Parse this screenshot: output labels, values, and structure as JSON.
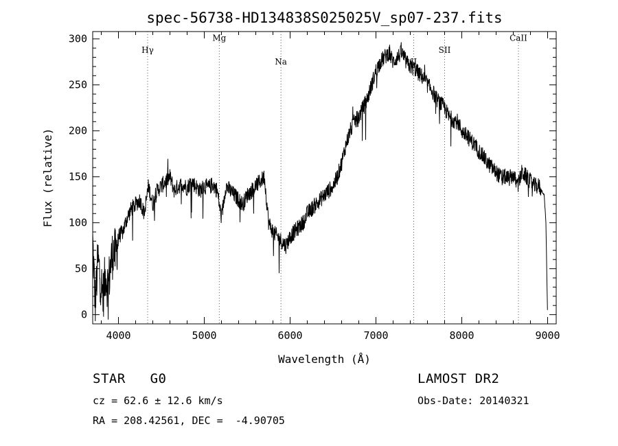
{
  "chart_data": {
    "type": "line",
    "title": "spec-56738-HD134838S025025V_sp07-237.fits",
    "xlabel": "Wavelength (Å)",
    "ylabel": "Flux (relative)",
    "xlim": [
      3700,
      9100
    ],
    "ylim": [
      -10,
      308
    ],
    "xticks": [
      4000,
      5000,
      6000,
      7000,
      8000,
      9000
    ],
    "yticks": [
      0,
      50,
      100,
      150,
      200,
      250,
      300
    ],
    "grid": false,
    "series": [
      {
        "x": [
          3700,
          3730,
          3760,
          3790,
          3820,
          3850,
          3880,
          3910,
          3940,
          3970,
          4000,
          4050,
          4100,
          4150,
          4200,
          4250,
          4300,
          4350,
          4400,
          4450,
          4500,
          4550,
          4600,
          4650,
          4700,
          4750,
          4800,
          4850,
          4900,
          4950,
          5000,
          5050,
          5100,
          5150,
          5200,
          5250,
          5300,
          5350,
          5400,
          5450,
          5500,
          5550,
          5600,
          5650,
          5700,
          5750,
          5800,
          5850,
          5900,
          5950,
          6000,
          6050,
          6100,
          6150,
          6200,
          6250,
          6300,
          6350,
          6400,
          6450,
          6500,
          6550,
          6600,
          6650,
          6700,
          6750,
          6800,
          6850,
          6900,
          6950,
          7000,
          7050,
          7100,
          7150,
          7200,
          7250,
          7300,
          7350,
          7400,
          7450,
          7500,
          7550,
          7600,
          7650,
          7700,
          7750,
          7800,
          7850,
          7900,
          7950,
          8000,
          8050,
          8100,
          8150,
          8200,
          8250,
          8300,
          8350,
          8400,
          8450,
          8500,
          8550,
          8600,
          8650,
          8700,
          8750,
          8800,
          8850,
          8900,
          8930,
          8960,
          8980,
          9000
        ],
        "y": [
          80,
          10,
          60,
          40,
          20,
          45,
          30,
          55,
          70,
          65,
          85,
          90,
          105,
          115,
          120,
          125,
          110,
          140,
          120,
          135,
          140,
          145,
          150,
          135,
          140,
          142,
          138,
          145,
          140,
          135,
          140,
          138,
          142,
          135,
          105,
          140,
          135,
          130,
          125,
          120,
          130,
          135,
          140,
          145,
          150,
          100,
          90,
          85,
          80,
          75,
          85,
          90,
          95,
          100,
          110,
          115,
          120,
          125,
          130,
          135,
          140,
          150,
          165,
          185,
          200,
          210,
          215,
          225,
          235,
          250,
          265,
          275,
          280,
          285,
          275,
          280,
          285,
          275,
          270,
          268,
          262,
          258,
          250,
          245,
          235,
          230,
          225,
          215,
          212,
          210,
          200,
          195,
          190,
          185,
          178,
          172,
          165,
          160,
          155,
          150,
          150,
          148,
          152,
          140,
          155,
          150,
          145,
          140,
          140,
          135,
          130,
          100,
          -5
        ]
      }
    ],
    "line_markers": [
      {
        "label": "Hγ",
        "x": 4340,
        "y": 285
      },
      {
        "label": "Mg",
        "x": 5175,
        "y": 298
      },
      {
        "label": "Na",
        "x": 5893,
        "y": 272
      },
      {
        "label": "II",
        "x": 7440,
        "y": 272
      },
      {
        "label": "SII",
        "x": 7800,
        "y": 285
      },
      {
        "label": "CaII",
        "x": 8660,
        "y": 298
      }
    ]
  },
  "info": {
    "class_text": "STAR   G0",
    "cz_text": "cz = 62.6 ± 12.6 km/s",
    "radec_text": "RA = 208.42561, DEC =  -4.90705",
    "survey_text": "LAMOST DR2",
    "obsdate_text": "Obs-Date: 20140321"
  }
}
